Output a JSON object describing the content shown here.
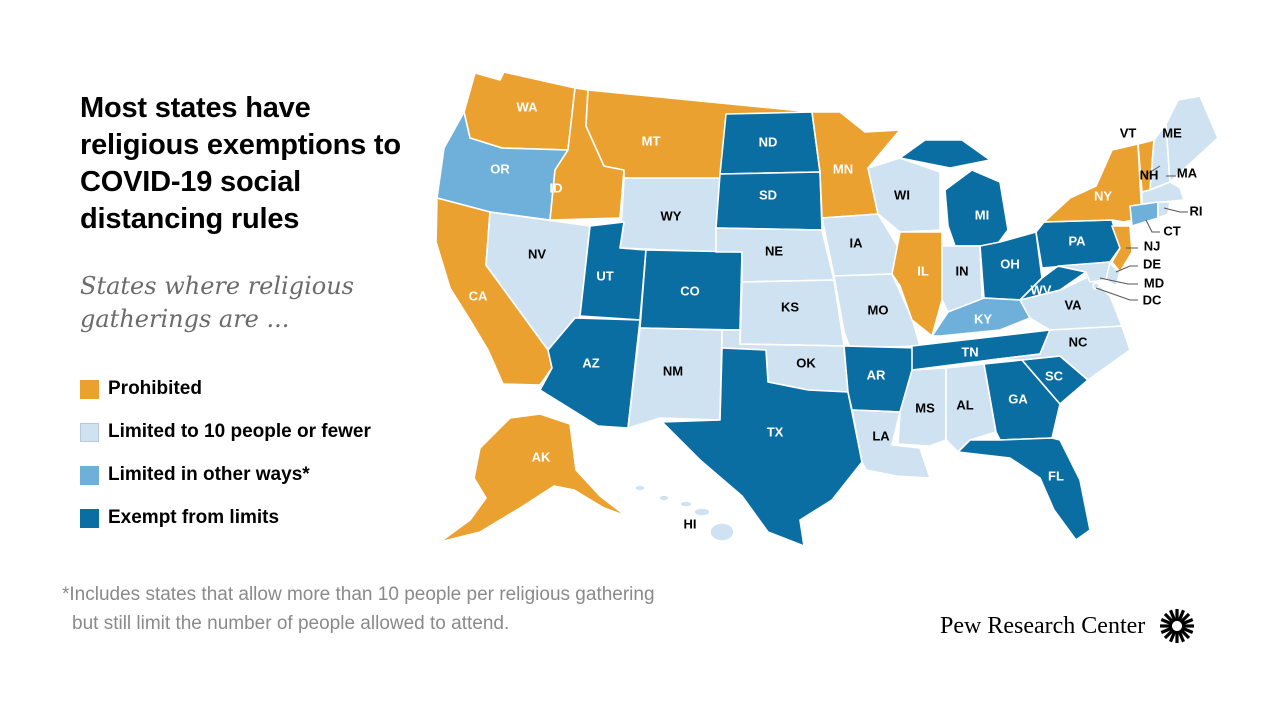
{
  "title": "Most states have religious exemptions to COVID-19 social distancing rules",
  "subtitle": "States where religious gatherings are ...",
  "colors": {
    "prohibited": "#eba12f",
    "limited10": "#cfe2f1",
    "limited_other": "#6fb0db",
    "exempt": "#0a6ea3",
    "ink": "#000000",
    "note": "#8a8a8a"
  },
  "legend": [
    {
      "key": "prohibited",
      "label": "Prohibited"
    },
    {
      "key": "limited10",
      "label": "Limited to 10 people or fewer"
    },
    {
      "key": "limited_other",
      "label": "Limited in other ways*"
    },
    {
      "key": "exempt",
      "label": "Exempt from limits"
    }
  ],
  "states": {
    "WA": "prohibited",
    "OR": "limited_other",
    "CA": "prohibited",
    "ID": "prohibited",
    "MT": "prohibited",
    "NV": "limited10",
    "WY": "limited10",
    "UT": "exempt",
    "AZ": "exempt",
    "CO": "exempt",
    "NM": "limited10",
    "ND": "exempt",
    "SD": "exempt",
    "NE": "limited10",
    "KS": "limited10",
    "OK": "limited10",
    "TX": "exempt",
    "MN": "prohibited",
    "IA": "limited10",
    "MO": "limited10",
    "AR": "exempt",
    "LA": "limited10",
    "WI": "limited10",
    "IL": "prohibited",
    "MI": "exempt",
    "IN": "limited10",
    "OH": "exempt",
    "KY": "limited_other",
    "TN": "exempt",
    "MS": "limited10",
    "AL": "limited10",
    "GA": "exempt",
    "FL": "exempt",
    "SC": "exempt",
    "NC": "limited10",
    "VA": "limited10",
    "WV": "exempt",
    "PA": "exempt",
    "NY": "prohibited",
    "VT": "prohibited",
    "NH": "limited10",
    "ME": "limited10",
    "MA": "limited10",
    "RI": "limited10",
    "CT": "limited_other",
    "NJ": "prohibited",
    "DE": "limited10",
    "MD": "limited10",
    "DC": "limited10",
    "AK": "prohibited",
    "HI": "limited10"
  },
  "footnote_line1": "*Includes states that allow more than 10 people per religious gathering",
  "footnote_line2": "but still limit the number of people allowed to attend.",
  "source": "Pew Research Center"
}
